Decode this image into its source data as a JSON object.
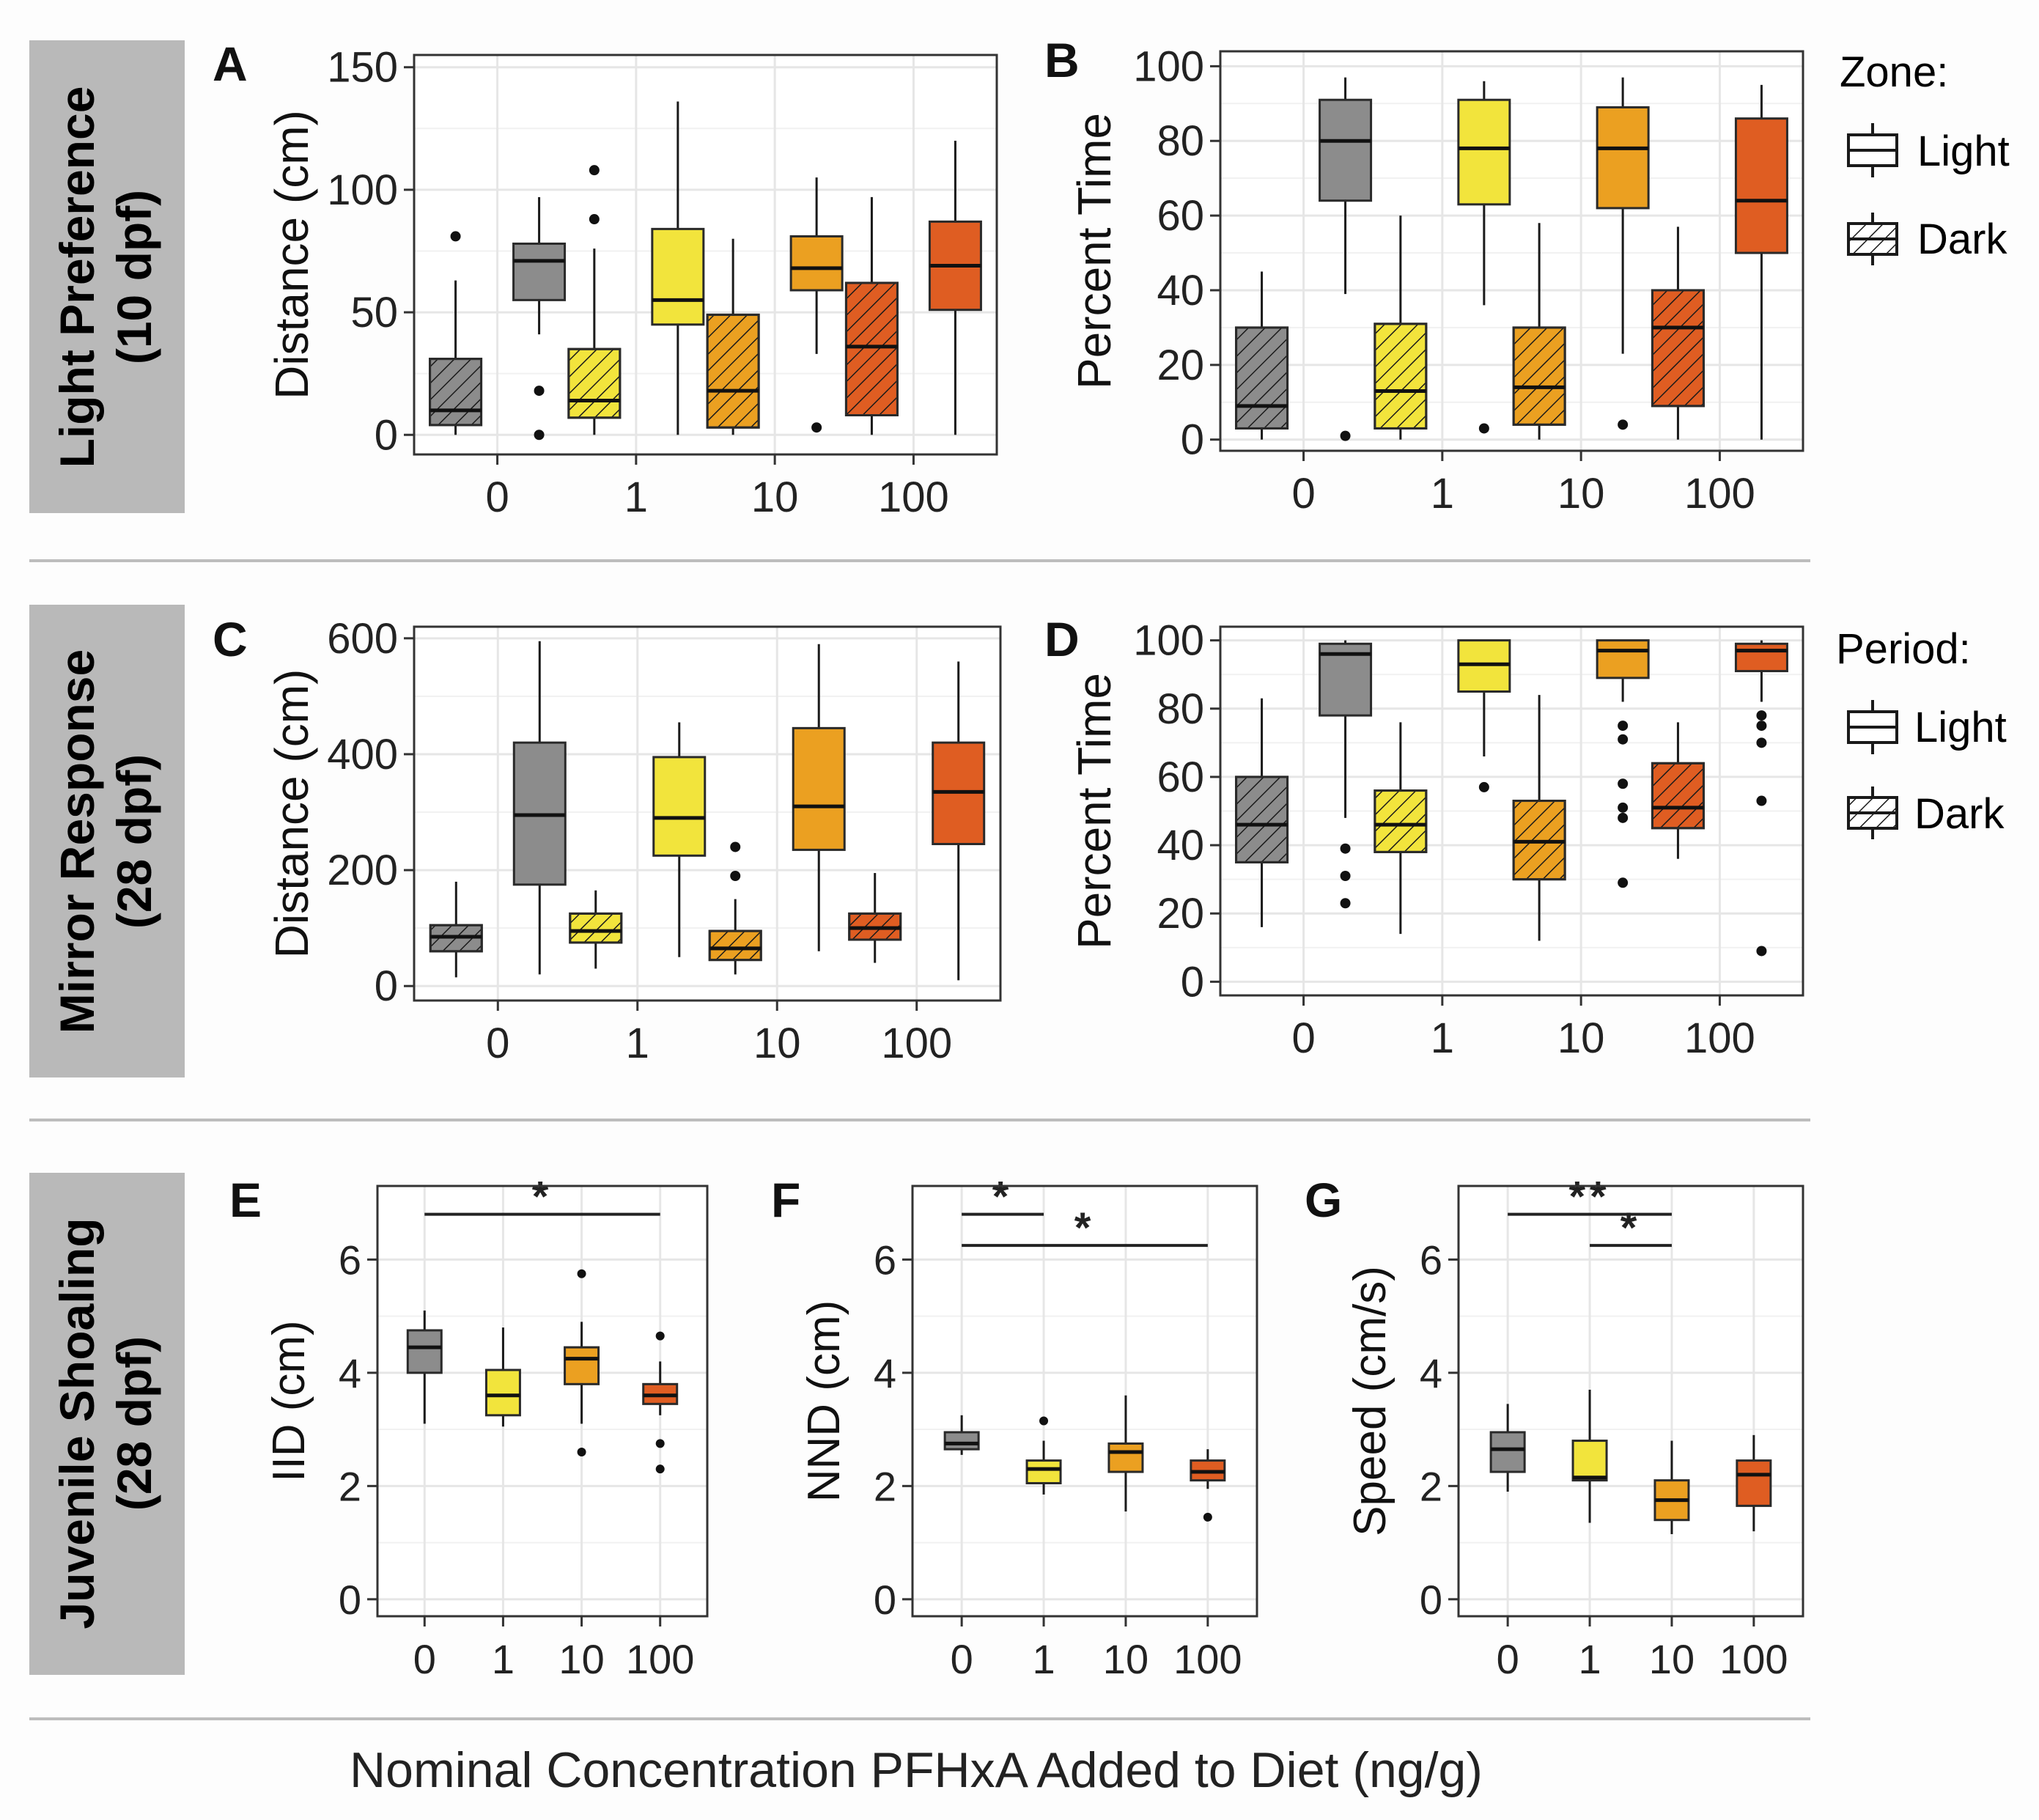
{
  "colors": {
    "c0": "#8c8c8c",
    "c1": "#f2e43c",
    "c10": "#eba021",
    "c100": "#df5d22",
    "row_bg": "#b9b9b9",
    "divider": "#bdbdbd",
    "grid": "#e6e6e6"
  },
  "rows": [
    {
      "label_line1": "Light Preference",
      "label_line2": "(10 dpf)"
    },
    {
      "label_line1": "Mirror Response",
      "label_line2": "(28 dpf)"
    },
    {
      "label_line1": "Juvenile Shoaling",
      "label_line2": "(28 dpf)"
    }
  ],
  "legends": [
    {
      "title": "Zone:",
      "items": [
        "Light",
        "Dark"
      ]
    },
    {
      "title": "Period:",
      "items": [
        "Light",
        "Dark"
      ]
    }
  ],
  "xlabel": "Nominal Concentration PFHxA Added to Diet (ng/g)",
  "chart_data": [
    {
      "panel": "A",
      "type": "boxplot",
      "ylabel": "Distance (cm)",
      "ylim": [
        -8,
        155
      ],
      "yticks": [
        0,
        50,
        100,
        150
      ],
      "categories": [
        "0",
        "1",
        "10",
        "100"
      ],
      "xlabel": "",
      "boxes": [
        {
          "group": "0",
          "series": "Dark",
          "min": 0,
          "q1": 4,
          "median": 10,
          "q3": 31,
          "max": 63,
          "outliers": [
            81
          ]
        },
        {
          "group": "0",
          "series": "Light",
          "min": 41,
          "q1": 55,
          "median": 71,
          "q3": 78,
          "max": 97,
          "outliers": [
            18,
            0
          ]
        },
        {
          "group": "1",
          "series": "Dark",
          "min": 0,
          "q1": 7,
          "median": 14,
          "q3": 35,
          "max": 76,
          "outliers": [
            108,
            88
          ]
        },
        {
          "group": "1",
          "series": "Light",
          "min": 0,
          "q1": 45,
          "median": 55,
          "q3": 84,
          "max": 136,
          "outliers": []
        },
        {
          "group": "10",
          "series": "Dark",
          "min": 0,
          "q1": 3,
          "median": 18,
          "q3": 49,
          "max": 80,
          "outliers": []
        },
        {
          "group": "10",
          "series": "Light",
          "min": 33,
          "q1": 59,
          "median": 68,
          "q3": 81,
          "max": 105,
          "outliers": [
            3
          ]
        },
        {
          "group": "100",
          "series": "Dark",
          "min": 0,
          "q1": 8,
          "median": 36,
          "q3": 62,
          "max": 97,
          "outliers": []
        },
        {
          "group": "100",
          "series": "Light",
          "min": 0,
          "q1": 51,
          "median": 69,
          "q3": 87,
          "max": 120,
          "outliers": []
        }
      ]
    },
    {
      "panel": "B",
      "type": "boxplot",
      "ylabel": "Percent Time",
      "ylim": [
        -3,
        104
      ],
      "yticks": [
        0,
        20,
        40,
        60,
        80,
        100
      ],
      "categories": [
        "0",
        "1",
        "10",
        "100"
      ],
      "xlabel": "",
      "boxes": [
        {
          "group": "0",
          "series": "Dark",
          "min": 0,
          "q1": 3,
          "median": 9,
          "q3": 30,
          "max": 45,
          "outliers": []
        },
        {
          "group": "0",
          "series": "Light",
          "min": 39,
          "q1": 64,
          "median": 80,
          "q3": 91,
          "max": 97,
          "outliers": [
            1
          ]
        },
        {
          "group": "1",
          "series": "Dark",
          "min": 0,
          "q1": 3,
          "median": 13,
          "q3": 31,
          "max": 60,
          "outliers": []
        },
        {
          "group": "1",
          "series": "Light",
          "min": 36,
          "q1": 63,
          "median": 78,
          "q3": 91,
          "max": 96,
          "outliers": [
            3
          ]
        },
        {
          "group": "10",
          "series": "Dark",
          "min": 0,
          "q1": 4,
          "median": 14,
          "q3": 30,
          "max": 58,
          "outliers": []
        },
        {
          "group": "10",
          "series": "Light",
          "min": 23,
          "q1": 62,
          "median": 78,
          "q3": 89,
          "max": 97,
          "outliers": [
            4
          ]
        },
        {
          "group": "100",
          "series": "Dark",
          "min": 0,
          "q1": 9,
          "median": 30,
          "q3": 40,
          "max": 57,
          "outliers": []
        },
        {
          "group": "100",
          "series": "Light",
          "min": 0,
          "q1": 50,
          "median": 64,
          "q3": 86,
          "max": 95,
          "outliers": []
        }
      ]
    },
    {
      "panel": "C",
      "type": "boxplot",
      "ylabel": "Distance (cm)",
      "ylim": [
        -25,
        620
      ],
      "yticks": [
        0,
        200,
        400,
        600
      ],
      "categories": [
        "0",
        "1",
        "10",
        "100"
      ],
      "xlabel": "",
      "boxes": [
        {
          "group": "0",
          "series": "Dark",
          "min": 15,
          "q1": 60,
          "median": 85,
          "q3": 105,
          "max": 180,
          "outliers": []
        },
        {
          "group": "0",
          "series": "Light",
          "min": 20,
          "q1": 175,
          "median": 295,
          "q3": 420,
          "max": 595,
          "outliers": []
        },
        {
          "group": "1",
          "series": "Dark",
          "min": 30,
          "q1": 75,
          "median": 95,
          "q3": 125,
          "max": 165,
          "outliers": []
        },
        {
          "group": "1",
          "series": "Light",
          "min": 50,
          "q1": 225,
          "median": 290,
          "q3": 395,
          "max": 455,
          "outliers": []
        },
        {
          "group": "10",
          "series": "Dark",
          "min": 20,
          "q1": 45,
          "median": 65,
          "q3": 95,
          "max": 150,
          "outliers": [
            240,
            190
          ]
        },
        {
          "group": "10",
          "series": "Light",
          "min": 60,
          "q1": 235,
          "median": 310,
          "q3": 445,
          "max": 590,
          "outliers": []
        },
        {
          "group": "100",
          "series": "Dark",
          "min": 40,
          "q1": 80,
          "median": 100,
          "q3": 125,
          "max": 195,
          "outliers": []
        },
        {
          "group": "100",
          "series": "Light",
          "min": 10,
          "q1": 245,
          "median": 335,
          "q3": 420,
          "max": 560,
          "outliers": []
        }
      ]
    },
    {
      "panel": "D",
      "type": "boxplot",
      "ylabel": "Percent Time",
      "ylim": [
        -4,
        104
      ],
      "yticks": [
        0,
        20,
        40,
        60,
        80,
        100
      ],
      "categories": [
        "0",
        "1",
        "10",
        "100"
      ],
      "xlabel": "",
      "boxes": [
        {
          "group": "0",
          "series": "Dark",
          "min": 16,
          "q1": 35,
          "median": 46,
          "q3": 60,
          "max": 83,
          "outliers": []
        },
        {
          "group": "0",
          "series": "Light",
          "min": 48,
          "q1": 78,
          "median": 96,
          "q3": 99,
          "max": 100,
          "outliers": [
            39,
            31,
            23
          ]
        },
        {
          "group": "1",
          "series": "Dark",
          "min": 14,
          "q1": 38,
          "median": 46,
          "q3": 56,
          "max": 76,
          "outliers": []
        },
        {
          "group": "1",
          "series": "Light",
          "min": 66,
          "q1": 85,
          "median": 93,
          "q3": 100,
          "max": 100,
          "outliers": [
            57
          ]
        },
        {
          "group": "10",
          "series": "Dark",
          "min": 12,
          "q1": 30,
          "median": 41,
          "q3": 53,
          "max": 84,
          "outliers": []
        },
        {
          "group": "10",
          "series": "Light",
          "min": 82,
          "q1": 89,
          "median": 97,
          "q3": 100,
          "max": 100,
          "outliers": [
            75,
            71,
            58,
            51,
            48,
            29
          ]
        },
        {
          "group": "100",
          "series": "Dark",
          "min": 36,
          "q1": 45,
          "median": 51,
          "q3": 64,
          "max": 76,
          "outliers": []
        },
        {
          "group": "100",
          "series": "Light",
          "min": 82,
          "q1": 91,
          "median": 97,
          "q3": 99,
          "max": 100,
          "outliers": [
            78,
            75,
            70,
            53,
            9
          ]
        }
      ]
    },
    {
      "panel": "E",
      "type": "boxplot",
      "ylabel": "IID (cm)",
      "ylim": [
        -0.3,
        7.3
      ],
      "yticks": [
        0,
        2,
        4,
        6
      ],
      "categories": [
        "0",
        "1",
        "10",
        "100"
      ],
      "xlabel": "",
      "boxes": [
        {
          "group": "0",
          "series": "",
          "min": 3.1,
          "q1": 4.0,
          "median": 4.45,
          "q3": 4.75,
          "max": 5.1,
          "outliers": []
        },
        {
          "group": "1",
          "series": "",
          "min": 3.05,
          "q1": 3.25,
          "median": 3.6,
          "q3": 4.05,
          "max": 4.8,
          "outliers": []
        },
        {
          "group": "10",
          "series": "",
          "min": 3.1,
          "q1": 3.8,
          "median": 4.25,
          "q3": 4.45,
          "max": 4.9,
          "outliers": [
            5.75,
            2.6
          ]
        },
        {
          "group": "100",
          "series": "",
          "min": 3.25,
          "q1": 3.45,
          "median": 3.6,
          "q3": 3.8,
          "max": 4.2,
          "outliers": [
            4.65,
            2.75,
            2.3
          ]
        }
      ],
      "significance": [
        {
          "from": "0",
          "to": "100",
          "y": 6.8,
          "label": "*"
        }
      ]
    },
    {
      "panel": "F",
      "type": "boxplot",
      "ylabel": "NND (cm)",
      "ylim": [
        -0.3,
        7.3
      ],
      "yticks": [
        0,
        2,
        4,
        6
      ],
      "categories": [
        "0",
        "1",
        "10",
        "100"
      ],
      "xlabel": "",
      "boxes": [
        {
          "group": "0",
          "series": "",
          "min": 2.55,
          "q1": 2.65,
          "median": 2.75,
          "q3": 2.95,
          "max": 3.25,
          "outliers": []
        },
        {
          "group": "1",
          "series": "",
          "min": 1.85,
          "q1": 2.05,
          "median": 2.3,
          "q3": 2.45,
          "max": 2.8,
          "outliers": [
            3.15
          ]
        },
        {
          "group": "10",
          "series": "",
          "min": 1.55,
          "q1": 2.25,
          "median": 2.6,
          "q3": 2.75,
          "max": 3.6,
          "outliers": []
        },
        {
          "group": "100",
          "series": "",
          "min": 1.95,
          "q1": 2.1,
          "median": 2.25,
          "q3": 2.45,
          "max": 2.65,
          "outliers": [
            1.45
          ]
        }
      ],
      "significance": [
        {
          "from": "0",
          "to": "1",
          "y": 6.8,
          "label": "*"
        },
        {
          "from": "0",
          "to": "100",
          "y": 6.25,
          "label": "*"
        }
      ]
    },
    {
      "panel": "G",
      "type": "boxplot",
      "ylabel": "Speed (cm/s)",
      "ylim": [
        -0.3,
        7.3
      ],
      "yticks": [
        0,
        2,
        4,
        6
      ],
      "categories": [
        "0",
        "1",
        "10",
        "100"
      ],
      "xlabel": "",
      "boxes": [
        {
          "group": "0",
          "series": "",
          "min": 1.9,
          "q1": 2.25,
          "median": 2.65,
          "q3": 2.95,
          "max": 3.45,
          "outliers": []
        },
        {
          "group": "1",
          "series": "",
          "min": 1.35,
          "q1": 2.1,
          "median": 2.15,
          "q3": 2.8,
          "max": 3.7,
          "outliers": []
        },
        {
          "group": "10",
          "series": "",
          "min": 1.15,
          "q1": 1.4,
          "median": 1.75,
          "q3": 2.1,
          "max": 2.8,
          "outliers": []
        },
        {
          "group": "100",
          "series": "",
          "min": 1.2,
          "q1": 1.65,
          "median": 2.2,
          "q3": 2.45,
          "max": 2.9,
          "outliers": []
        }
      ],
      "significance": [
        {
          "from": "0",
          "to": "10",
          "y": 6.8,
          "label": "**"
        },
        {
          "from": "1",
          "to": "10",
          "y": 6.25,
          "label": "*"
        }
      ]
    }
  ]
}
